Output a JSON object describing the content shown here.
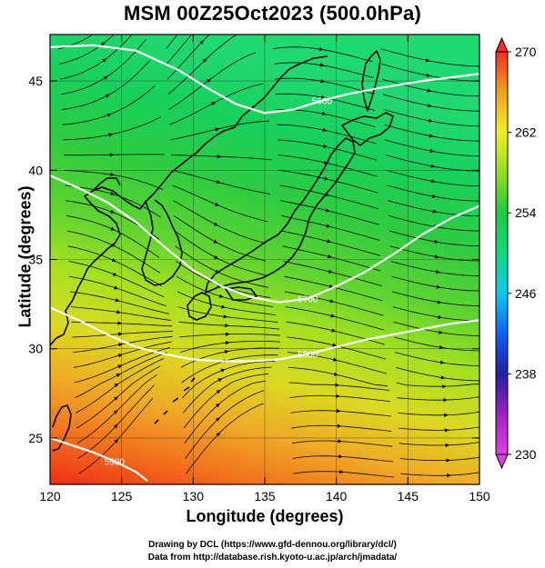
{
  "title": "MSM 00Z25Oct2023 (500.0hPa)",
  "xlabel": "Longitude (degrees)",
  "ylabel": "Latitude  (degrees)",
  "credits": {
    "line1": "Drawing by DCL (https://www.gfd-dennou.org/library/dcl/)",
    "line2": "Data from http://database.rish.kyoto-u.ac.jp/arch/jmadata/"
  },
  "chart_data": {
    "type": "heatmap",
    "title": "MSM 00Z25Oct2023 (500.0hPa)",
    "xlabel": "Longitude (degrees)",
    "ylabel": "Latitude  (degrees)",
    "xlim": [
      120,
      150
    ],
    "ylim": [
      22.4,
      47.6
    ],
    "xticks": [
      120,
      125,
      130,
      135,
      140,
      145,
      150
    ],
    "yticks": [
      25,
      30,
      35,
      40,
      45
    ],
    "colorbar": {
      "min": 230,
      "max": 270,
      "ticks": [
        230,
        238,
        246,
        254,
        262,
        270
      ],
      "colors": [
        "#e040e0",
        "#a020c0",
        "#2020a0",
        "#1060f0",
        "#10c8f0",
        "#10d880",
        "#20c840",
        "#90e020",
        "#f0f020",
        "#f0a020",
        "#f03020"
      ]
    },
    "grid": true,
    "contours": [
      {
        "label": "5600",
        "points": [
          [
            120,
            46.9
          ],
          [
            123,
            47.0
          ],
          [
            126,
            46.7
          ],
          [
            129,
            45.6
          ],
          [
            131,
            44.6
          ],
          [
            133,
            43.7
          ],
          [
            135,
            43.2
          ],
          [
            137,
            43.4
          ],
          [
            139,
            43.9
          ],
          [
            141,
            44.3
          ],
          [
            143,
            44.6
          ],
          [
            146,
            45.0
          ],
          [
            150,
            45.4
          ]
        ]
      },
      {
        "label": "5700",
        "points": [
          [
            120,
            39.7
          ],
          [
            122,
            39.0
          ],
          [
            124,
            38.2
          ],
          [
            126,
            37.1
          ],
          [
            128,
            35.7
          ],
          [
            130,
            34.4
          ],
          [
            132,
            33.5
          ],
          [
            134,
            32.9
          ],
          [
            136,
            32.6
          ],
          [
            138,
            32.8
          ],
          [
            140,
            33.5
          ],
          [
            142,
            34.3
          ],
          [
            144,
            35.3
          ],
          [
            146,
            36.4
          ],
          [
            148,
            37.3
          ],
          [
            150,
            38.0
          ]
        ]
      },
      {
        "label": "5800",
        "points": [
          [
            120,
            32.3
          ],
          [
            122,
            31.6
          ],
          [
            124,
            30.8
          ],
          [
            126,
            30.1
          ],
          [
            128,
            29.7
          ],
          [
            130,
            29.4
          ],
          [
            132,
            29.3
          ],
          [
            134,
            29.3
          ],
          [
            136,
            29.4
          ],
          [
            138,
            29.7
          ],
          [
            140,
            30.1
          ],
          [
            142,
            30.5
          ],
          [
            144,
            30.8
          ],
          [
            146,
            31.1
          ],
          [
            148,
            31.4
          ],
          [
            150,
            31.6
          ]
        ]
      },
      {
        "label": "5900",
        "points": [
          [
            120,
            25.0
          ],
          [
            121.5,
            24.6
          ],
          [
            123,
            24.2
          ],
          [
            124.5,
            23.7
          ],
          [
            126,
            23.1
          ],
          [
            126.8,
            22.6
          ]
        ]
      }
    ],
    "wind_regime": "westerly"
  }
}
